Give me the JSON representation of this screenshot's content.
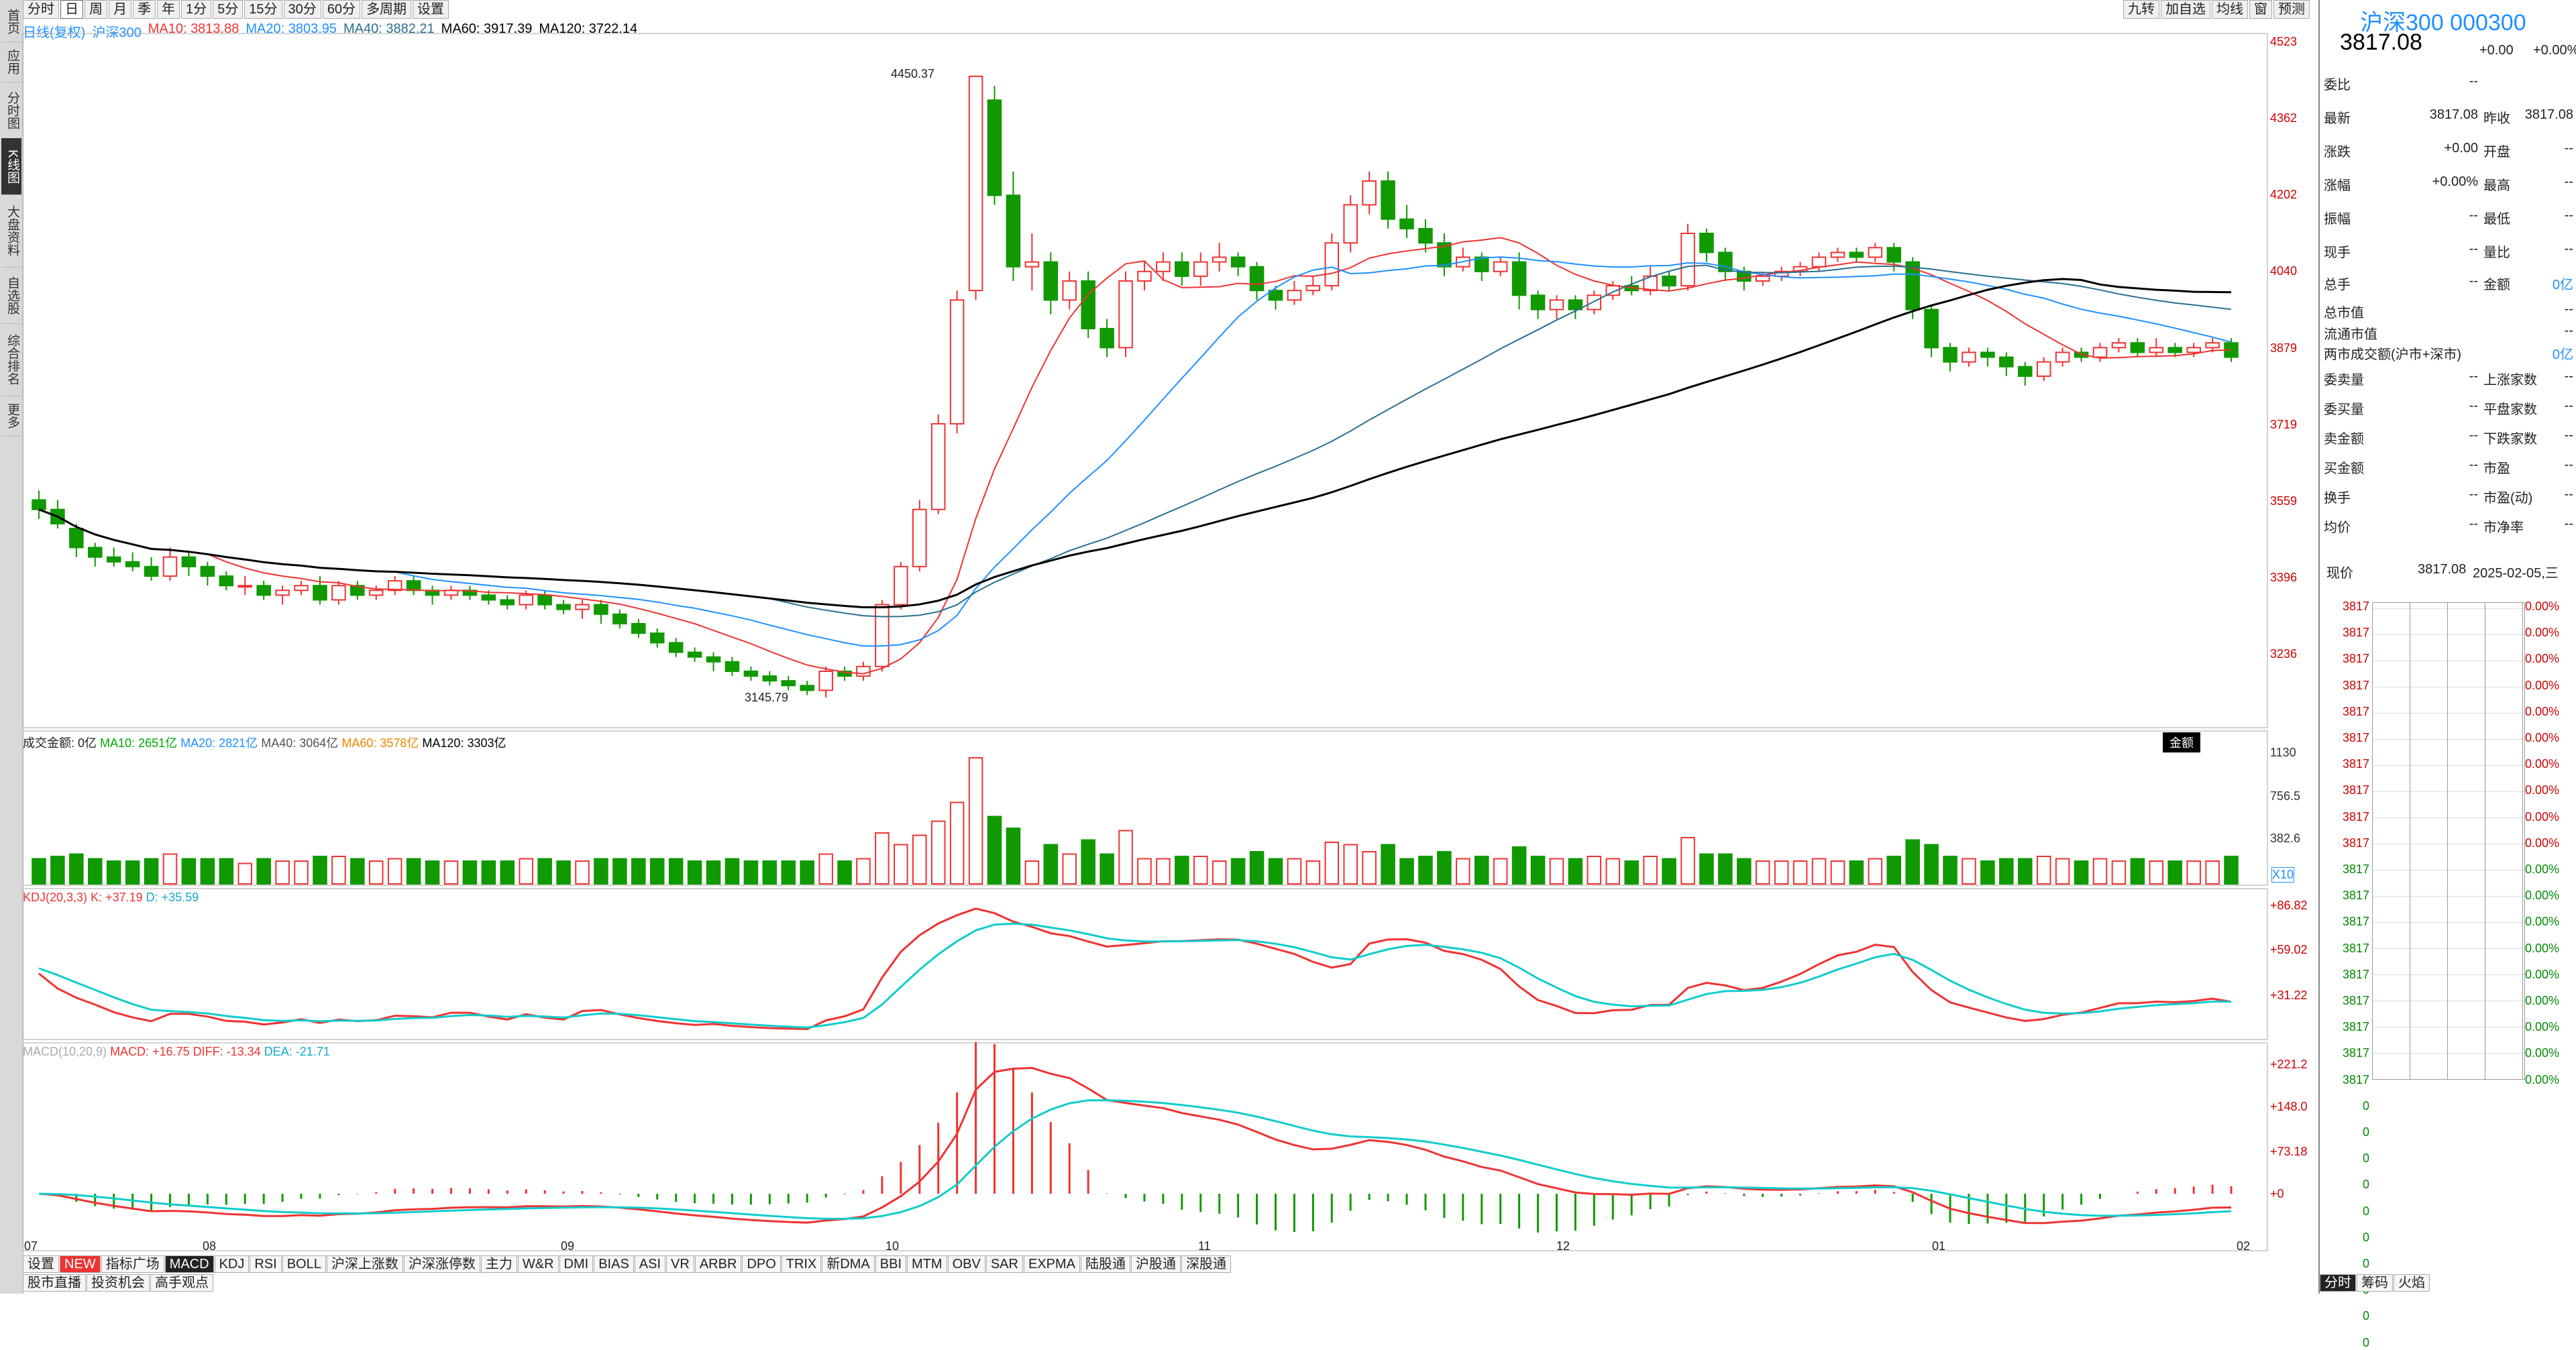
{
  "leftbar": {
    "items": [
      "首页",
      "应用",
      "分时图",
      "K线图",
      "大盘资料",
      "自选股",
      "综合排名",
      "更多"
    ],
    "active": 3
  },
  "toptabs": [
    "分时",
    "日",
    "周",
    "月",
    "季",
    "年",
    "1分",
    "5分",
    "15分",
    "30分",
    "60分",
    "多周期",
    "设置"
  ],
  "toptabs_active": 1,
  "tools": [
    "九转",
    "加自选",
    "均线",
    "窗",
    "预测"
  ],
  "legend": {
    "main": "日线(复权)",
    "name": "沪深300",
    "ma10": "MA10: 3813.88",
    "ma20": "MA20: 3803.95",
    "ma40": "MA40: 3882.21",
    "ma60": "MA60: 3917.39",
    "ma120": "MA120: 3722.14"
  },
  "price_axis": [
    "4523",
    "4362",
    "4202",
    "4040",
    "3879",
    "3719",
    "3559",
    "3396",
    "3236"
  ],
  "annotations": {
    "high": "4450.37",
    "low": "3145.79"
  },
  "volume": {
    "title": "成交金额: 0亿",
    "ma10": "MA10: 2651亿",
    "ma20": "MA20: 2821亿",
    "ma40": "MA40: 3064亿",
    "ma60": "MA60: 3578亿",
    "ma120": "MA120: 3303亿",
    "axis": [
      "1130",
      "756.5",
      "382.6"
    ],
    "unit": "X10",
    "btn": "金额"
  },
  "kdj": {
    "title": "KDJ(20,3,3)",
    "k": "K: +37.19",
    "d": "D: +35.59",
    "axis": [
      "+86.82",
      "+59.02",
      "+31.22"
    ]
  },
  "macd": {
    "title": "MACD(10,20,9)",
    "macd": "MACD: +16.75",
    "diff": "DIFF: -13.34",
    "dea": "DEA: -21.71",
    "axis": [
      "+221.2",
      "+148.0",
      "+73.18",
      "+0"
    ]
  },
  "months": [
    "07",
    "08",
    "09",
    "10",
    "11",
    "12",
    "01",
    "02"
  ],
  "bottom_tabs": [
    "设置",
    "NEW",
    "指标广场",
    "MACD",
    "KDJ",
    "RSI",
    "BOLL",
    "沪深上涨数",
    "沪深涨停数",
    "主力",
    "W&R",
    "DMI",
    "BIAS",
    "ASI",
    "VR",
    "ARBR",
    "DPO",
    "TRIX",
    "新DMA",
    "BBI",
    "MTM",
    "OBV",
    "SAR",
    "EXPMA",
    "陆股通",
    "沪股通",
    "深股通"
  ],
  "bottom_tabs2": [
    "股市直播",
    "投资机会",
    "高手观点"
  ],
  "right": {
    "title": "沪深300 000300",
    "price": "3817.08",
    "change": "+0.00",
    "pct": "+0.00%",
    "rows": [
      [
        "委比",
        "--",
        "",
        ""
      ],
      [
        "最新",
        "3817.08",
        "昨收",
        "3817.08"
      ],
      [
        "涨跌",
        "+0.00",
        "开盘",
        "--"
      ],
      [
        "涨幅",
        "+0.00%",
        "最高",
        "--"
      ],
      [
        "振幅",
        "--",
        "最低",
        "--"
      ],
      [
        "现手",
        "--",
        "量比",
        "--"
      ],
      [
        "总手",
        "--",
        "金额",
        "0亿"
      ],
      [
        "总市值",
        "",
        "",
        "--"
      ],
      [
        "流通市值",
        "",
        "",
        "--"
      ],
      [
        "两市成交额(沪市+深市)",
        "",
        "",
        "0亿"
      ],
      [
        "委卖量",
        "--",
        "上涨家数",
        "--"
      ],
      [
        "委买量",
        "--",
        "平盘家数",
        "--"
      ],
      [
        "卖金额",
        "--",
        "下跌家数",
        "--"
      ],
      [
        "买金额",
        "--",
        "市盈",
        "--"
      ],
      [
        "换手",
        "--",
        "市盈(动)",
        "--"
      ],
      [
        "均价",
        "--",
        "市净率",
        "--"
      ]
    ],
    "now_label": "现价",
    "now_price": "3817.08",
    "date": "2025-02-05,三",
    "tick_val": "3817",
    "tick_pct": "0.00%",
    "tick_zero": "0",
    "tabs": [
      "分时",
      "筹码",
      "火焰"
    ]
  },
  "chart_data": {
    "type": "candlestick",
    "ylim": [
      3145,
      4523
    ],
    "candles": [
      [
        3560,
        3540,
        3580,
        3520
      ],
      [
        3540,
        3510,
        3560,
        3500
      ],
      [
        3500,
        3460,
        3510,
        3440
      ],
      [
        3460,
        3440,
        3470,
        3420
      ],
      [
        3440,
        3430,
        3460,
        3420
      ],
      [
        3430,
        3420,
        3450,
        3410
      ],
      [
        3420,
        3400,
        3440,
        3390
      ],
      [
        3400,
        3440,
        3460,
        3390
      ],
      [
        3440,
        3420,
        3450,
        3400
      ],
      [
        3420,
        3400,
        3430,
        3380
      ],
      [
        3400,
        3380,
        3410,
        3370
      ],
      [
        3380,
        3380,
        3400,
        3360
      ],
      [
        3380,
        3360,
        3390,
        3350
      ],
      [
        3360,
        3370,
        3380,
        3340
      ],
      [
        3370,
        3380,
        3390,
        3360
      ],
      [
        3380,
        3350,
        3400,
        3340
      ],
      [
        3350,
        3380,
        3390,
        3340
      ],
      [
        3380,
        3360,
        3390,
        3350
      ],
      [
        3360,
        3370,
        3380,
        3350
      ],
      [
        3370,
        3390,
        3400,
        3360
      ],
      [
        3390,
        3370,
        3400,
        3360
      ],
      [
        3370,
        3360,
        3380,
        3340
      ],
      [
        3360,
        3370,
        3380,
        3350
      ],
      [
        3370,
        3360,
        3380,
        3350
      ],
      [
        3360,
        3350,
        3370,
        3340
      ],
      [
        3350,
        3340,
        3360,
        3330
      ],
      [
        3340,
        3360,
        3370,
        3330
      ],
      [
        3360,
        3340,
        3370,
        3330
      ],
      [
        3340,
        3330,
        3350,
        3320
      ],
      [
        3330,
        3340,
        3350,
        3310
      ],
      [
        3340,
        3320,
        3350,
        3300
      ],
      [
        3320,
        3300,
        3330,
        3290
      ],
      [
        3300,
        3280,
        3310,
        3270
      ],
      [
        3280,
        3260,
        3290,
        3250
      ],
      [
        3260,
        3240,
        3270,
        3230
      ],
      [
        3240,
        3230,
        3250,
        3220
      ],
      [
        3230,
        3220,
        3240,
        3200
      ],
      [
        3220,
        3200,
        3230,
        3190
      ],
      [
        3200,
        3190,
        3210,
        3180
      ],
      [
        3190,
        3180,
        3200,
        3170
      ],
      [
        3180,
        3170,
        3190,
        3160
      ],
      [
        3170,
        3160,
        3180,
        3150
      ],
      [
        3160,
        3200,
        3210,
        3145
      ],
      [
        3200,
        3190,
        3210,
        3180
      ],
      [
        3190,
        3210,
        3220,
        3180
      ],
      [
        3210,
        3340,
        3350,
        3200
      ],
      [
        3340,
        3420,
        3430,
        3330
      ],
      [
        3420,
        3540,
        3560,
        3410
      ],
      [
        3540,
        3720,
        3740,
        3530
      ],
      [
        3720,
        3980,
        4000,
        3700
      ],
      [
        4000,
        4450,
        4450,
        3980
      ],
      [
        4400,
        4200,
        4430,
        4180
      ],
      [
        4200,
        4050,
        4250,
        4020
      ],
      [
        4050,
        4060,
        4120,
        4000
      ],
      [
        4060,
        3980,
        4080,
        3950
      ],
      [
        3980,
        4020,
        4040,
        3960
      ],
      [
        4020,
        3920,
        4040,
        3900
      ],
      [
        3920,
        3880,
        3940,
        3860
      ],
      [
        3880,
        4020,
        4040,
        3860
      ],
      [
        4020,
        4040,
        4060,
        4000
      ],
      [
        4040,
        4060,
        4080,
        4020
      ],
      [
        4060,
        4030,
        4080,
        4010
      ],
      [
        4030,
        4060,
        4080,
        4010
      ],
      [
        4060,
        4070,
        4100,
        4040
      ],
      [
        4070,
        4050,
        4080,
        4030
      ],
      [
        4050,
        4000,
        4060,
        3980
      ],
      [
        4000,
        3980,
        4010,
        3960
      ],
      [
        3980,
        4000,
        4020,
        3970
      ],
      [
        4000,
        4010,
        4030,
        3990
      ],
      [
        4010,
        4100,
        4120,
        4000
      ],
      [
        4100,
        4180,
        4200,
        4080
      ],
      [
        4180,
        4230,
        4250,
        4160
      ],
      [
        4230,
        4150,
        4250,
        4130
      ],
      [
        4150,
        4130,
        4180,
        4110
      ],
      [
        4130,
        4100,
        4150,
        4080
      ],
      [
        4100,
        4050,
        4120,
        4030
      ],
      [
        4050,
        4070,
        4090,
        4040
      ],
      [
        4070,
        4040,
        4080,
        4020
      ],
      [
        4040,
        4060,
        4070,
        4030
      ],
      [
        4060,
        3990,
        4080,
        3960
      ],
      [
        3990,
        3960,
        4000,
        3940
      ],
      [
        3960,
        3980,
        3990,
        3940
      ],
      [
        3980,
        3960,
        3990,
        3940
      ],
      [
        3960,
        3990,
        4000,
        3950
      ],
      [
        3990,
        4010,
        4020,
        3980
      ],
      [
        4010,
        4000,
        4030,
        3990
      ],
      [
        4000,
        4030,
        4050,
        3990
      ],
      [
        4030,
        4010,
        4040,
        4000
      ],
      [
        4010,
        4120,
        4140,
        4000
      ],
      [
        4120,
        4080,
        4130,
        4060
      ],
      [
        4080,
        4040,
        4090,
        4020
      ],
      [
        4040,
        4020,
        4050,
        4000
      ],
      [
        4020,
        4030,
        4040,
        4010
      ],
      [
        4030,
        4040,
        4050,
        4020
      ],
      [
        4040,
        4050,
        4060,
        4030
      ],
      [
        4050,
        4070,
        4080,
        4040
      ],
      [
        4070,
        4080,
        4090,
        4060
      ],
      [
        4080,
        4070,
        4090,
        4060
      ],
      [
        4070,
        4090,
        4100,
        4060
      ],
      [
        4090,
        4060,
        4100,
        4040
      ],
      [
        4060,
        3960,
        4070,
        3940
      ],
      [
        3960,
        3880,
        3970,
        3860
      ],
      [
        3880,
        3850,
        3890,
        3830
      ],
      [
        3850,
        3870,
        3880,
        3840
      ],
      [
        3870,
        3860,
        3880,
        3840
      ],
      [
        3860,
        3840,
        3870,
        3820
      ],
      [
        3840,
        3820,
        3850,
        3800
      ],
      [
        3820,
        3850,
        3860,
        3810
      ],
      [
        3850,
        3870,
        3880,
        3840
      ],
      [
        3870,
        3860,
        3880,
        3850
      ],
      [
        3860,
        3880,
        3890,
        3850
      ],
      [
        3880,
        3890,
        3900,
        3870
      ],
      [
        3890,
        3870,
        3900,
        3860
      ],
      [
        3870,
        3880,
        3900,
        3860
      ],
      [
        3880,
        3870,
        3890,
        3860
      ],
      [
        3870,
        3880,
        3890,
        3860
      ],
      [
        3880,
        3890,
        3900,
        3870
      ],
      [
        3890,
        3860,
        3900,
        3850
      ]
    ]
  }
}
